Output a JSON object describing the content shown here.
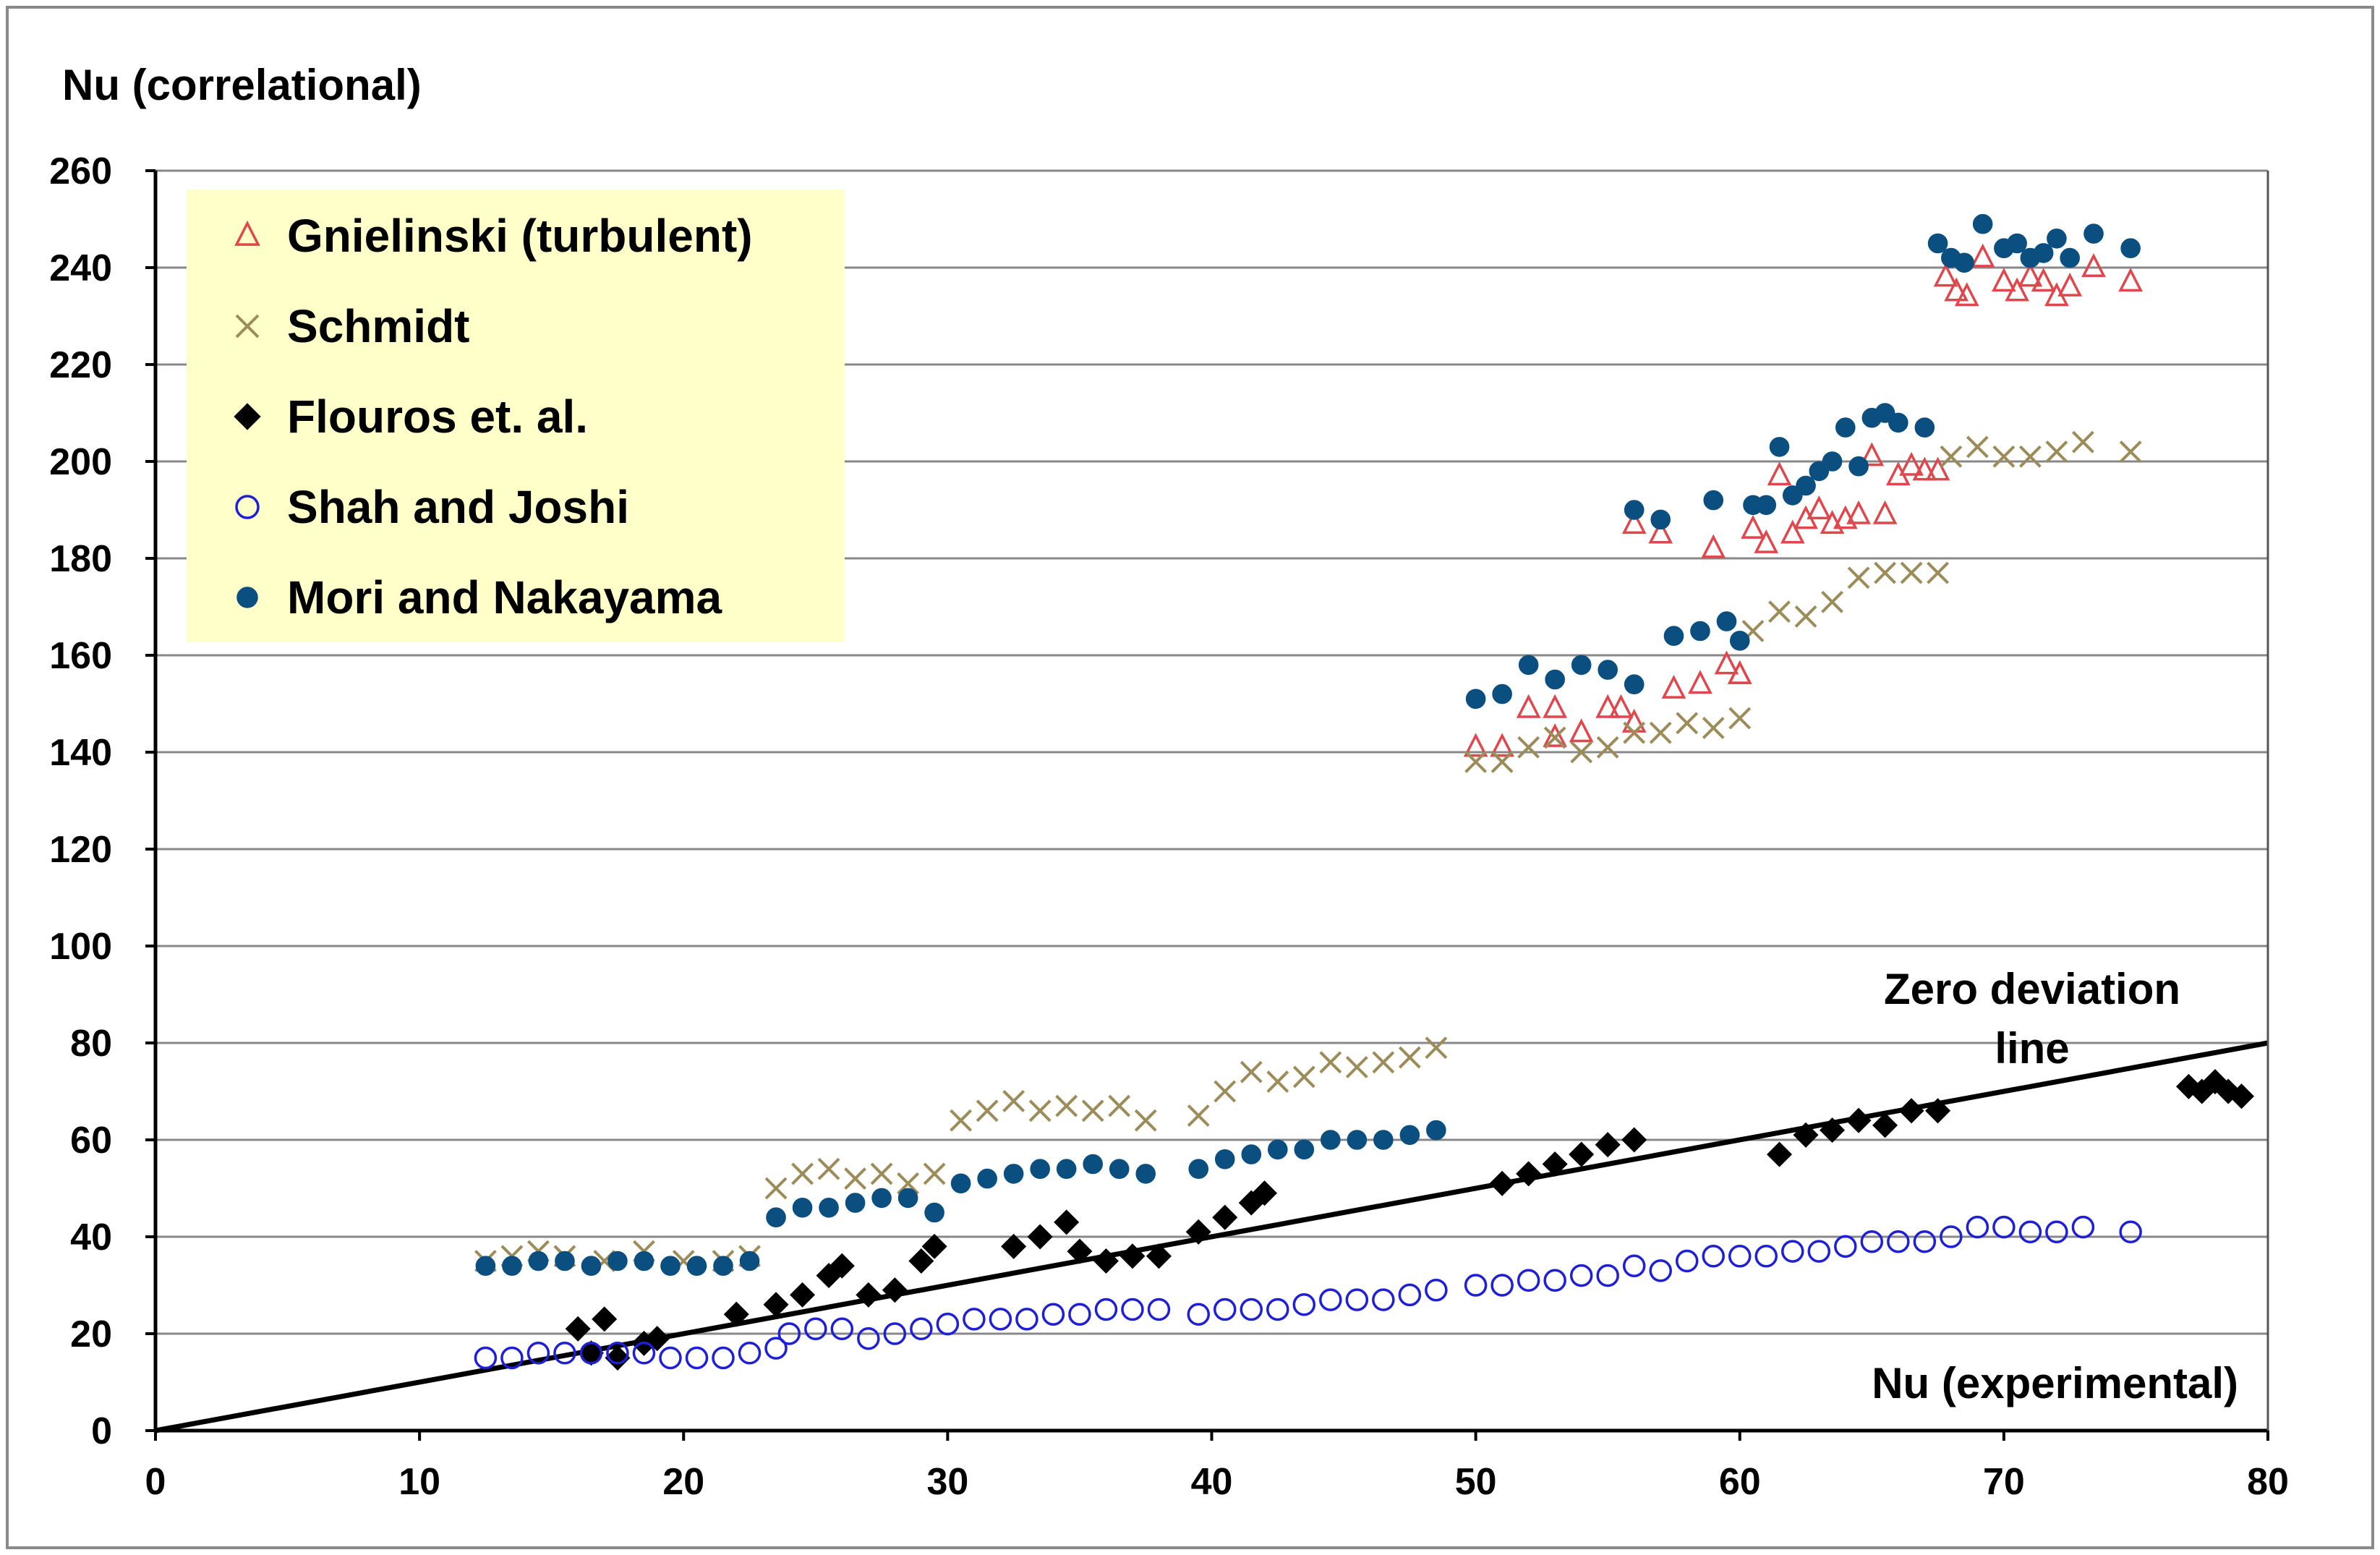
{
  "chart_data": {
    "type": "scatter",
    "title": "",
    "ylabel": "Nu (correlational)",
    "xlabel": "Nu (experimental)",
    "xlim": [
      0,
      80
    ],
    "ylim": [
      0,
      260
    ],
    "xticks": [
      "0",
      "10",
      "20",
      "30",
      "40",
      "50",
      "60",
      "70",
      "80"
    ],
    "yticks": [
      "0",
      "20",
      "40",
      "60",
      "80",
      "100",
      "120",
      "140",
      "160",
      "180",
      "200",
      "220",
      "240",
      "260"
    ],
    "grid": "horizontal",
    "legend_position": "top-left",
    "reference_line": {
      "label_line1": "Zero deviation",
      "label_line2": "line",
      "x": [
        0,
        80
      ],
      "y": [
        0,
        80
      ],
      "color": "#000000"
    },
    "series": [
      {
        "name": "Gnielinski (turbulent)",
        "marker": "triangle-open",
        "color": "#e0474c",
        "points": [
          [
            50,
            141
          ],
          [
            51,
            141
          ],
          [
            52,
            149
          ],
          [
            53,
            149
          ],
          [
            53,
            143
          ],
          [
            54,
            144
          ],
          [
            55,
            149
          ],
          [
            55.5,
            149
          ],
          [
            56,
            146
          ],
          [
            56,
            187
          ],
          [
            57,
            185
          ],
          [
            57.5,
            153
          ],
          [
            58.5,
            154
          ],
          [
            59,
            182
          ],
          [
            59.5,
            158
          ],
          [
            60,
            156
          ],
          [
            60,
            156
          ],
          [
            60.5,
            186
          ],
          [
            61,
            183
          ],
          [
            61.5,
            197
          ],
          [
            62,
            185
          ],
          [
            62.5,
            188
          ],
          [
            63,
            190
          ],
          [
            63.5,
            187
          ],
          [
            64,
            188
          ],
          [
            64.5,
            189
          ],
          [
            65,
            201
          ],
          [
            65.5,
            189
          ],
          [
            66,
            197
          ],
          [
            66.5,
            199
          ],
          [
            67,
            198
          ],
          [
            67.5,
            198
          ],
          [
            67.8,
            238
          ],
          [
            68.2,
            235
          ],
          [
            68.6,
            234
          ],
          [
            69.2,
            242
          ],
          [
            70,
            237
          ],
          [
            70.5,
            235
          ],
          [
            71,
            238
          ],
          [
            71.5,
            237
          ],
          [
            72,
            234
          ],
          [
            72.5,
            236
          ],
          [
            73.4,
            240
          ],
          [
            74.8,
            237
          ]
        ]
      },
      {
        "name": "Schmidt",
        "marker": "x",
        "color": "#9c8c5a",
        "points": [
          [
            12.5,
            35
          ],
          [
            13.5,
            36
          ],
          [
            14.5,
            37
          ],
          [
            15.5,
            36
          ],
          [
            17,
            35
          ],
          [
            18.5,
            37
          ],
          [
            20,
            35
          ],
          [
            21.5,
            35
          ],
          [
            22.5,
            36
          ],
          [
            23.5,
            50
          ],
          [
            24.5,
            53
          ],
          [
            25.5,
            54
          ],
          [
            26.5,
            52
          ],
          [
            27.5,
            53
          ],
          [
            28.5,
            51
          ],
          [
            29.5,
            53
          ],
          [
            30.5,
            64
          ],
          [
            31.5,
            66
          ],
          [
            32.5,
            68
          ],
          [
            33.5,
            66
          ],
          [
            34.5,
            67
          ],
          [
            35.5,
            66
          ],
          [
            36.5,
            67
          ],
          [
            37.5,
            64
          ],
          [
            39.5,
            65
          ],
          [
            40.5,
            70
          ],
          [
            41.5,
            74
          ],
          [
            42.5,
            72
          ],
          [
            43.5,
            73
          ],
          [
            44.5,
            76
          ],
          [
            45.5,
            75
          ],
          [
            46.5,
            76
          ],
          [
            47.5,
            77
          ],
          [
            48.5,
            79
          ],
          [
            50,
            138
          ],
          [
            51,
            138
          ],
          [
            52,
            141
          ],
          [
            53,
            143
          ],
          [
            54,
            140
          ],
          [
            55,
            141
          ],
          [
            56,
            144
          ],
          [
            57,
            144
          ],
          [
            58,
            146
          ],
          [
            59,
            145
          ],
          [
            60,
            147
          ],
          [
            60.5,
            165
          ],
          [
            61.5,
            169
          ],
          [
            62.5,
            168
          ],
          [
            63.5,
            171
          ],
          [
            64.5,
            176
          ],
          [
            65.5,
            177
          ],
          [
            66.5,
            177
          ],
          [
            67.5,
            177
          ],
          [
            68,
            201
          ],
          [
            69,
            203
          ],
          [
            70,
            201
          ],
          [
            71,
            201
          ],
          [
            72,
            202
          ],
          [
            73,
            204
          ],
          [
            74.8,
            202
          ]
        ]
      },
      {
        "name": "Flouros et. al.",
        "marker": "diamond",
        "color": "#000000",
        "points": [
          [
            16,
            21
          ],
          [
            16.5,
            16
          ],
          [
            17,
            23
          ],
          [
            17.5,
            15
          ],
          [
            18.5,
            18
          ],
          [
            19,
            19
          ],
          [
            22,
            24
          ],
          [
            23.5,
            26
          ],
          [
            24.5,
            28
          ],
          [
            25.5,
            32
          ],
          [
            26,
            34
          ],
          [
            27,
            28
          ],
          [
            28,
            29
          ],
          [
            29,
            35
          ],
          [
            29.5,
            38
          ],
          [
            32.5,
            38
          ],
          [
            33.5,
            40
          ],
          [
            34.5,
            43
          ],
          [
            35,
            37
          ],
          [
            36,
            35
          ],
          [
            37,
            36
          ],
          [
            38,
            36
          ],
          [
            39.5,
            41
          ],
          [
            40.5,
            44
          ],
          [
            41.5,
            47
          ],
          [
            42,
            49
          ],
          [
            51,
            51
          ],
          [
            52,
            53
          ],
          [
            53,
            55
          ],
          [
            54,
            57
          ],
          [
            55,
            59
          ],
          [
            56,
            60
          ],
          [
            61.5,
            57
          ],
          [
            62.5,
            61
          ],
          [
            63.5,
            62
          ],
          [
            64.5,
            64
          ],
          [
            65.5,
            63
          ],
          [
            66.5,
            66
          ],
          [
            67.5,
            66
          ],
          [
            77,
            71
          ],
          [
            77.5,
            70
          ],
          [
            78,
            72
          ],
          [
            78.5,
            70
          ],
          [
            79,
            69
          ]
        ]
      },
      {
        "name": "Shah and Joshi",
        "marker": "circle-open",
        "color": "#1f1fd6",
        "points": [
          [
            12.5,
            15
          ],
          [
            13.5,
            15
          ],
          [
            14.5,
            16
          ],
          [
            15.5,
            16
          ],
          [
            16.5,
            16
          ],
          [
            17.5,
            16
          ],
          [
            18.5,
            16
          ],
          [
            19.5,
            15
          ],
          [
            20.5,
            15
          ],
          [
            21.5,
            15
          ],
          [
            22.5,
            16
          ],
          [
            23.5,
            17
          ],
          [
            24,
            20
          ],
          [
            25,
            21
          ],
          [
            26,
            21
          ],
          [
            27,
            19
          ],
          [
            28,
            20
          ],
          [
            29,
            21
          ],
          [
            30,
            22
          ],
          [
            31,
            23
          ],
          [
            32,
            23
          ],
          [
            33,
            23
          ],
          [
            34,
            24
          ],
          [
            35,
            24
          ],
          [
            36,
            25
          ],
          [
            37,
            25
          ],
          [
            38,
            25
          ],
          [
            39.5,
            24
          ],
          [
            40.5,
            25
          ],
          [
            41.5,
            25
          ],
          [
            42.5,
            25
          ],
          [
            43.5,
            26
          ],
          [
            44.5,
            27
          ],
          [
            45.5,
            27
          ],
          [
            46.5,
            27
          ],
          [
            47.5,
            28
          ],
          [
            48.5,
            29
          ],
          [
            50,
            30
          ],
          [
            51,
            30
          ],
          [
            52,
            31
          ],
          [
            53,
            31
          ],
          [
            54,
            32
          ],
          [
            55,
            32
          ],
          [
            56,
            34
          ],
          [
            57,
            33
          ],
          [
            58,
            35
          ],
          [
            59,
            36
          ],
          [
            60,
            36
          ],
          [
            61,
            36
          ],
          [
            62,
            37
          ],
          [
            63,
            37
          ],
          [
            64,
            38
          ],
          [
            65,
            39
          ],
          [
            66,
            39
          ],
          [
            67,
            39
          ],
          [
            68,
            40
          ],
          [
            69,
            42
          ],
          [
            70,
            42
          ],
          [
            71,
            41
          ],
          [
            72,
            41
          ],
          [
            73,
            42
          ],
          [
            74.8,
            41
          ]
        ]
      },
      {
        "name": "Mori and Nakayama",
        "marker": "circle-filled",
        "color": "#0b4f80",
        "points": [
          [
            12.5,
            34
          ],
          [
            13.5,
            34
          ],
          [
            14.5,
            35
          ],
          [
            15.5,
            35
          ],
          [
            16.5,
            34
          ],
          [
            17.5,
            35
          ],
          [
            18.5,
            35
          ],
          [
            19.5,
            34
          ],
          [
            20.5,
            34
          ],
          [
            21.5,
            34
          ],
          [
            22.5,
            35
          ],
          [
            23.5,
            44
          ],
          [
            24.5,
            46
          ],
          [
            25.5,
            46
          ],
          [
            26.5,
            47
          ],
          [
            27.5,
            48
          ],
          [
            28.5,
            48
          ],
          [
            29.5,
            45
          ],
          [
            30.5,
            51
          ],
          [
            31.5,
            52
          ],
          [
            32.5,
            53
          ],
          [
            33.5,
            54
          ],
          [
            34.5,
            54
          ],
          [
            35.5,
            55
          ],
          [
            36.5,
            54
          ],
          [
            37.5,
            53
          ],
          [
            39.5,
            54
          ],
          [
            40.5,
            56
          ],
          [
            41.5,
            57
          ],
          [
            42.5,
            58
          ],
          [
            43.5,
            58
          ],
          [
            44.5,
            60
          ],
          [
            45.5,
            60
          ],
          [
            46.5,
            60
          ],
          [
            47.5,
            61
          ],
          [
            48.5,
            62
          ],
          [
            50,
            151
          ],
          [
            51,
            152
          ],
          [
            52,
            158
          ],
          [
            53,
            155
          ],
          [
            54,
            158
          ],
          [
            55,
            157
          ],
          [
            56,
            154
          ],
          [
            56,
            190
          ],
          [
            57,
            188
          ],
          [
            57.5,
            164
          ],
          [
            58.5,
            165
          ],
          [
            59,
            192
          ],
          [
            59.5,
            167
          ],
          [
            60,
            163
          ],
          [
            60.5,
            191
          ],
          [
            61,
            191
          ],
          [
            61.5,
            203
          ],
          [
            62,
            193
          ],
          [
            62.5,
            195
          ],
          [
            63,
            198
          ],
          [
            63.5,
            200
          ],
          [
            64,
            207
          ],
          [
            64.5,
            199
          ],
          [
            65,
            209
          ],
          [
            65.5,
            210
          ],
          [
            66,
            208
          ],
          [
            67,
            207
          ],
          [
            67.5,
            245
          ],
          [
            68,
            242
          ],
          [
            68.5,
            241
          ],
          [
            69.2,
            249
          ],
          [
            70,
            244
          ],
          [
            70.5,
            245
          ],
          [
            71,
            242
          ],
          [
            71.5,
            243
          ],
          [
            72,
            246
          ],
          [
            72.5,
            242
          ],
          [
            73.4,
            247
          ],
          [
            74.8,
            244
          ]
        ]
      }
    ]
  }
}
